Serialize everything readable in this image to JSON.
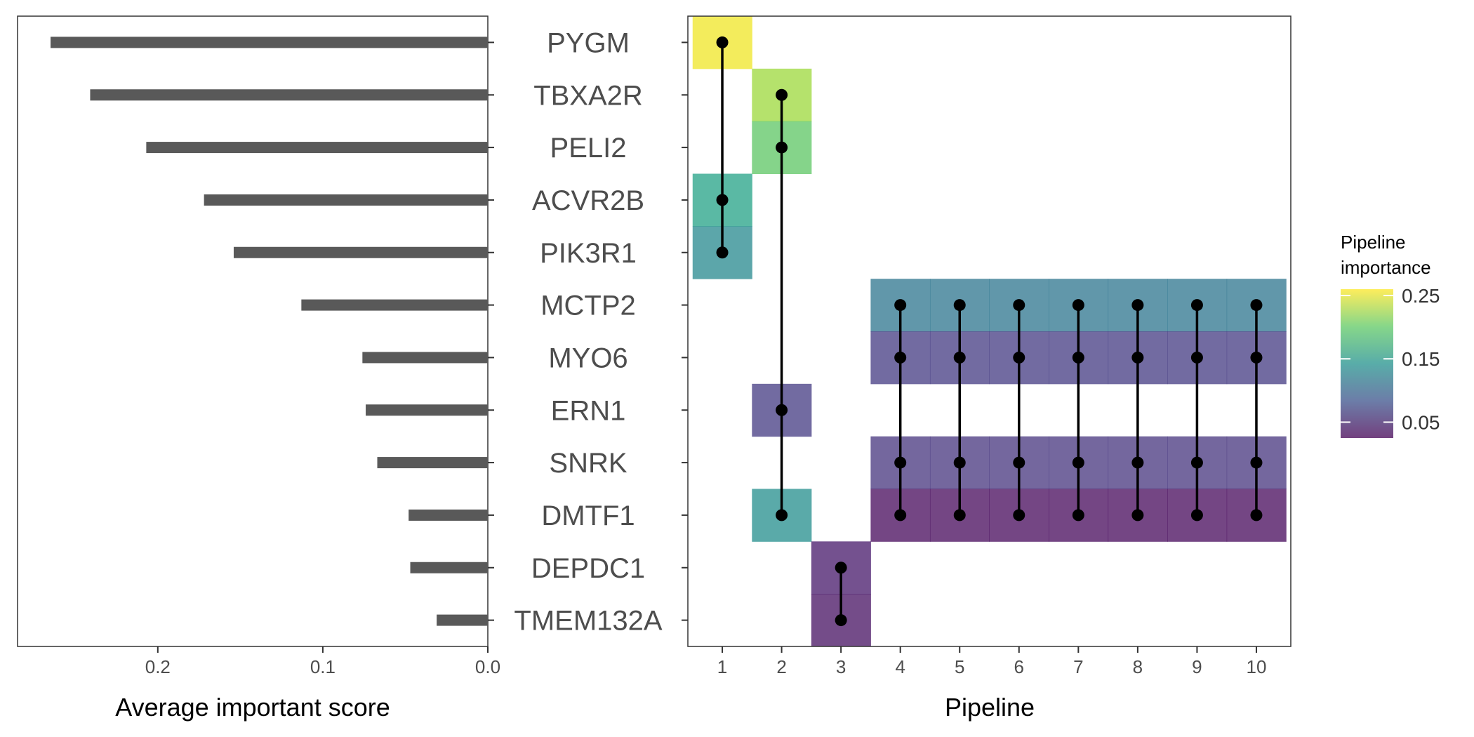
{
  "chart_data": [
    {
      "type": "bar",
      "orientation": "horizontal",
      "x_reversed": true,
      "categories": [
        "PYGM",
        "TBXA2R",
        "PELI2",
        "ACVR2B",
        "PIK3R1",
        "MCTP2",
        "MYO6",
        "ERN1",
        "SNRK",
        "DMTF1",
        "DEPDC1",
        "TMEM132A"
      ],
      "values": [
        0.265,
        0.241,
        0.207,
        0.172,
        0.154,
        0.113,
        0.076,
        0.074,
        0.067,
        0.048,
        0.047,
        0.031
      ],
      "xlim": [
        0,
        0.285
      ],
      "xticks": [
        0.2,
        0.1,
        0.0
      ],
      "xtick_labels": [
        "0.2",
        "0.1",
        "0.0"
      ],
      "xlabel": "Average important score",
      "bar_color": "#595959"
    },
    {
      "type": "heatmap",
      "title": "",
      "xlabel": "Pipeline",
      "pipelines": [
        "1",
        "2",
        "3",
        "4",
        "5",
        "6",
        "7",
        "8",
        "9",
        "10"
      ],
      "genes": [
        "PYGM",
        "TBXA2R",
        "PELI2",
        "ACVR2B",
        "PIK3R1",
        "MCTP2",
        "MYO6",
        "ERN1",
        "SNRK",
        "DMTF1",
        "DEPDC1",
        "TMEM132A"
      ],
      "cells": [
        {
          "pipeline": 1,
          "gene": "PYGM",
          "importance": 0.255
        },
        {
          "pipeline": 1,
          "gene": "ACVR2B",
          "importance": 0.16
        },
        {
          "pipeline": 1,
          "gene": "PIK3R1",
          "importance": 0.135
        },
        {
          "pipeline": 2,
          "gene": "TBXA2R",
          "importance": 0.225
        },
        {
          "pipeline": 2,
          "gene": "PELI2",
          "importance": 0.2
        },
        {
          "pipeline": 2,
          "gene": "ERN1",
          "importance": 0.065
        },
        {
          "pipeline": 2,
          "gene": "DMTF1",
          "importance": 0.14
        },
        {
          "pipeline": 3,
          "gene": "DEPDC1",
          "importance": 0.04
        },
        {
          "pipeline": 3,
          "gene": "TMEM132A",
          "importance": 0.035
        },
        {
          "pipeline": 4,
          "gene": "MCTP2",
          "importance": 0.115
        },
        {
          "pipeline": 4,
          "gene": "MYO6",
          "importance": 0.065
        },
        {
          "pipeline": 4,
          "gene": "SNRK",
          "importance": 0.06
        },
        {
          "pipeline": 4,
          "gene": "DMTF1",
          "importance": 0.03
        },
        {
          "pipeline": 5,
          "gene": "MCTP2",
          "importance": 0.115
        },
        {
          "pipeline": 5,
          "gene": "MYO6",
          "importance": 0.065
        },
        {
          "pipeline": 5,
          "gene": "SNRK",
          "importance": 0.06
        },
        {
          "pipeline": 5,
          "gene": "DMTF1",
          "importance": 0.03
        },
        {
          "pipeline": 6,
          "gene": "MCTP2",
          "importance": 0.115
        },
        {
          "pipeline": 6,
          "gene": "MYO6",
          "importance": 0.065
        },
        {
          "pipeline": 6,
          "gene": "SNRK",
          "importance": 0.06
        },
        {
          "pipeline": 6,
          "gene": "DMTF1",
          "importance": 0.03
        },
        {
          "pipeline": 7,
          "gene": "MCTP2",
          "importance": 0.115
        },
        {
          "pipeline": 7,
          "gene": "MYO6",
          "importance": 0.065
        },
        {
          "pipeline": 7,
          "gene": "SNRK",
          "importance": 0.06
        },
        {
          "pipeline": 7,
          "gene": "DMTF1",
          "importance": 0.03
        },
        {
          "pipeline": 8,
          "gene": "MCTP2",
          "importance": 0.115
        },
        {
          "pipeline": 8,
          "gene": "MYO6",
          "importance": 0.065
        },
        {
          "pipeline": 8,
          "gene": "SNRK",
          "importance": 0.06
        },
        {
          "pipeline": 8,
          "gene": "DMTF1",
          "importance": 0.03
        },
        {
          "pipeline": 9,
          "gene": "MCTP2",
          "importance": 0.115
        },
        {
          "pipeline": 9,
          "gene": "MYO6",
          "importance": 0.065
        },
        {
          "pipeline": 9,
          "gene": "SNRK",
          "importance": 0.06
        },
        {
          "pipeline": 9,
          "gene": "DMTF1",
          "importance": 0.03
        },
        {
          "pipeline": 10,
          "gene": "MCTP2",
          "importance": 0.115
        },
        {
          "pipeline": 10,
          "gene": "MYO6",
          "importance": 0.065
        },
        {
          "pipeline": 10,
          "gene": "SNRK",
          "importance": 0.06
        },
        {
          "pipeline": 10,
          "gene": "DMTF1",
          "importance": 0.03
        }
      ],
      "legend": {
        "title_lines": [
          "Pipeline",
          "importance"
        ],
        "range": [
          0.025,
          0.26
        ],
        "breaks": [
          0.25,
          0.15,
          0.05
        ],
        "labels": [
          "0.25",
          "0.15",
          "0.05"
        ],
        "colormap": "viridis (alpha 0.75)",
        "placement": "right"
      }
    }
  ]
}
